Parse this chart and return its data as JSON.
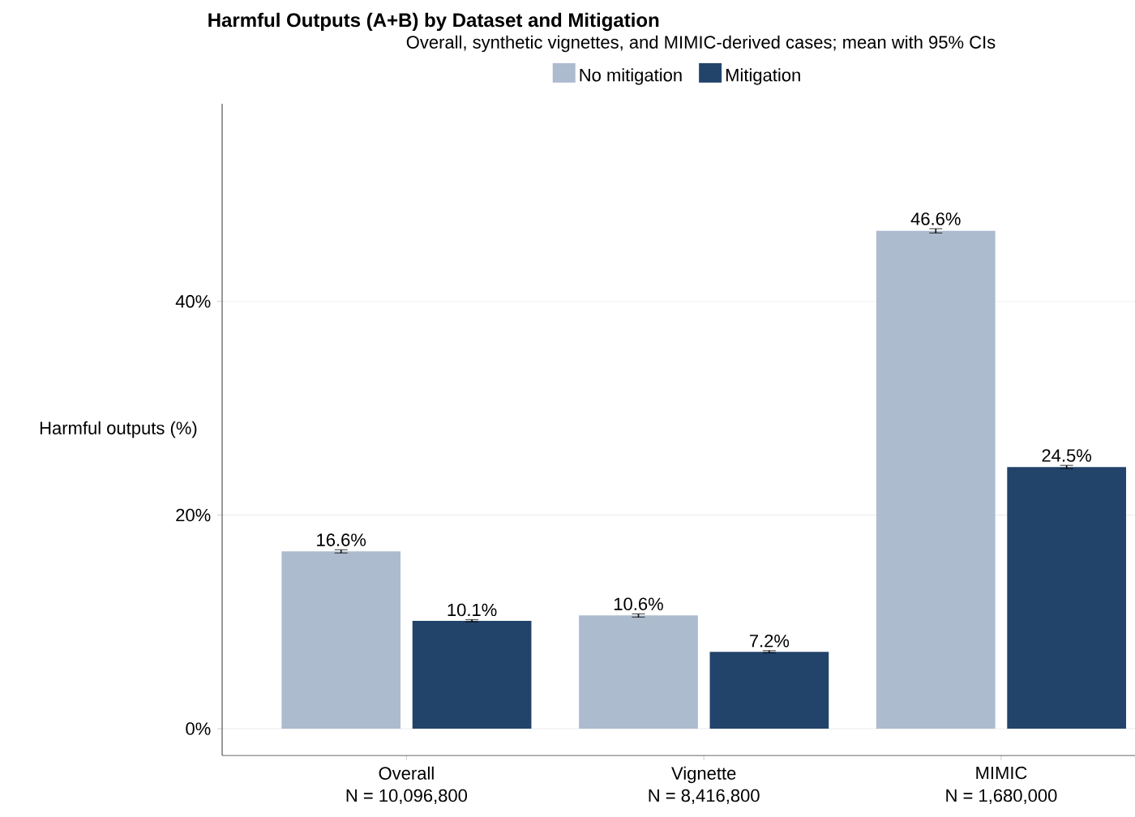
{
  "chart_data": {
    "type": "bar",
    "title": "Harmful Outputs (A+B) by Dataset and Mitigation",
    "subtitle": "Overall, synthetic vignettes, and MIMIC-derived cases; mean with 95% CIs",
    "ylabel": "Harmful outputs (%)",
    "categories": [
      "Overall",
      "Vignette",
      "MIMIC"
    ],
    "annotations": [
      "N = 10,096,800",
      "N = 8,416,800",
      "N = 1,680,000"
    ],
    "series": [
      {
        "name": "No mitigation",
        "color": "#adbbcf",
        "values": [
          16.6,
          10.6,
          46.6
        ],
        "errors": [
          0.15,
          0.15,
          0.2
        ],
        "value_labels": [
          "16.6%",
          "10.6%",
          "46.6%"
        ]
      },
      {
        "name": "Mitigation",
        "color": "#22446b",
        "values": [
          10.1,
          7.2,
          24.5
        ],
        "errors": [
          0.1,
          0.1,
          0.15
        ],
        "value_labels": [
          "10.1%",
          "7.2%",
          "24.5%"
        ]
      }
    ],
    "ylim": [
      -2.5,
      58.5
    ],
    "yticks": [
      {
        "value": 0,
        "label": "0%"
      },
      {
        "value": 20,
        "label": "20%"
      },
      {
        "value": 40,
        "label": "40%"
      }
    ],
    "grid": "y",
    "legend": "top"
  }
}
